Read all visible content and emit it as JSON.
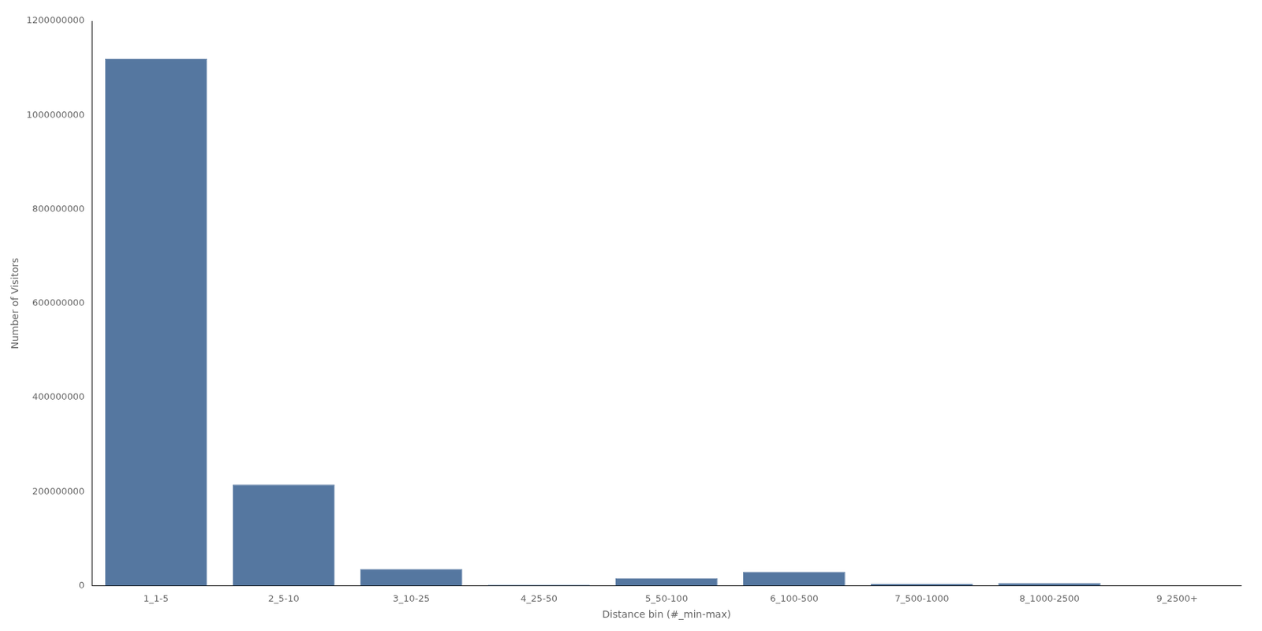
{
  "chart_data": {
    "type": "bar",
    "categories": [
      "1_1-5",
      "2_5-10",
      "3_10-25",
      "4_25-50",
      "5_50-100",
      "6_100-500",
      "7_500-1000",
      "8_1000-2500",
      "9_2500+"
    ],
    "values": [
      1120000000,
      215000000,
      36000000,
      2000000,
      16000000,
      30000000,
      4000000,
      6000000,
      300000
    ],
    "color": "#5577a0",
    "xlabel": "Distance bin (#_min-max)",
    "ylabel": "Number of Visitors",
    "ylim": [
      0,
      1200000000
    ],
    "yticks": [
      0,
      200000000,
      400000000,
      600000000,
      800000000,
      1000000000,
      1200000000
    ],
    "grid": false
  }
}
